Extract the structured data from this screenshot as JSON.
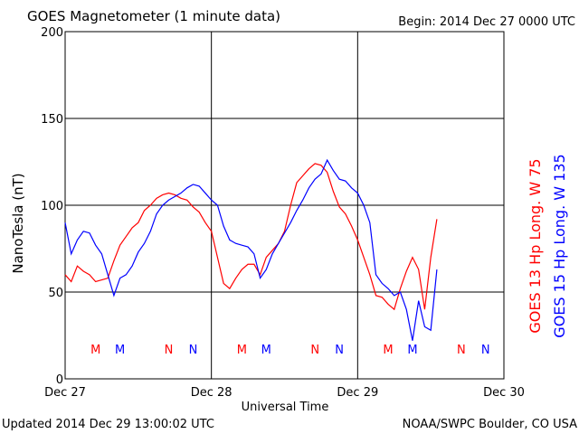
{
  "chart_data": {
    "type": "line",
    "title": "GOES Magnetometer (1 minute data)",
    "subtitle": "Begin:  2014 Dec 27 0000 UTC",
    "ylabel": "NanoTesla (nT)",
    "xlabel": "Universal Time",
    "footer_left": "Updated 2014 Dec 29 13:00:02 UTC",
    "footer_right": "NOAA/SWPC Boulder, CO USA",
    "xlim": [
      0,
      72
    ],
    "xticks": [
      {
        "value": 0,
        "label": "Dec 27"
      },
      {
        "value": 24,
        "label": "Dec 28"
      },
      {
        "value": 48,
        "label": "Dec 29"
      },
      {
        "value": 72,
        "label": "Dec 30"
      }
    ],
    "ylim": [
      0,
      200
    ],
    "yticks": [
      0,
      50,
      100,
      150,
      200
    ],
    "grid": true,
    "x": [
      0,
      1,
      2,
      3,
      4,
      5,
      6,
      7,
      8,
      9,
      10,
      11,
      12,
      13,
      14,
      15,
      16,
      17,
      18,
      19,
      20,
      21,
      22,
      23,
      24,
      25,
      26,
      27,
      28,
      29,
      30,
      31,
      32,
      33,
      34,
      35,
      36,
      37,
      38,
      39,
      40,
      41,
      42,
      43,
      44,
      45,
      46,
      47,
      48,
      49,
      50,
      51,
      52,
      53,
      54,
      55,
      56,
      57,
      58,
      59,
      60,
      61
    ],
    "series": [
      {
        "name": "GOES 13 Hp  Long. W 75",
        "color": "#ff0000",
        "values": [
          60,
          56,
          65,
          62,
          60,
          56,
          57,
          58,
          68,
          77,
          82,
          87,
          90,
          97,
          100,
          104,
          106,
          107,
          106,
          104,
          103,
          99,
          96,
          90,
          85,
          70,
          55,
          52,
          58,
          63,
          66,
          66,
          60,
          70,
          74,
          78,
          85,
          100,
          113,
          117,
          121,
          124,
          123,
          119,
          108,
          99,
          95,
          88,
          80,
          70,
          60,
          48,
          47,
          43,
          40,
          52,
          62,
          70,
          63,
          40,
          70,
          92
        ],
        "markers": [
          {
            "label": "M",
            "x": 5
          },
          {
            "label": "M",
            "x": 29
          },
          {
            "label": "M",
            "x": 53
          },
          {
            "label": "N",
            "x": 17
          },
          {
            "label": "N",
            "x": 41
          },
          {
            "label": "N",
            "x": 65
          }
        ]
      },
      {
        "name": "GOES 15 Hp  Long. W 135",
        "color": "#0000ff",
        "values": [
          90,
          72,
          80,
          85,
          84,
          77,
          72,
          60,
          48,
          58,
          60,
          65,
          73,
          78,
          85,
          95,
          100,
          103,
          105,
          107,
          110,
          112,
          111,
          107,
          103,
          100,
          88,
          80,
          78,
          77,
          76,
          72,
          58,
          63,
          72,
          78,
          84,
          90,
          97,
          103,
          110,
          115,
          118,
          126,
          120,
          115,
          114,
          110,
          107,
          100,
          90,
          60,
          55,
          52,
          48,
          50,
          40,
          22,
          45,
          30,
          28,
          63
        ],
        "markers": [
          {
            "label": "M",
            "x": 9
          },
          {
            "label": "M",
            "x": 33
          },
          {
            "label": "M",
            "x": 57
          },
          {
            "label": "N",
            "x": 21
          },
          {
            "label": "N",
            "x": 45
          },
          {
            "label": "N",
            "x": 69
          }
        ]
      }
    ]
  }
}
